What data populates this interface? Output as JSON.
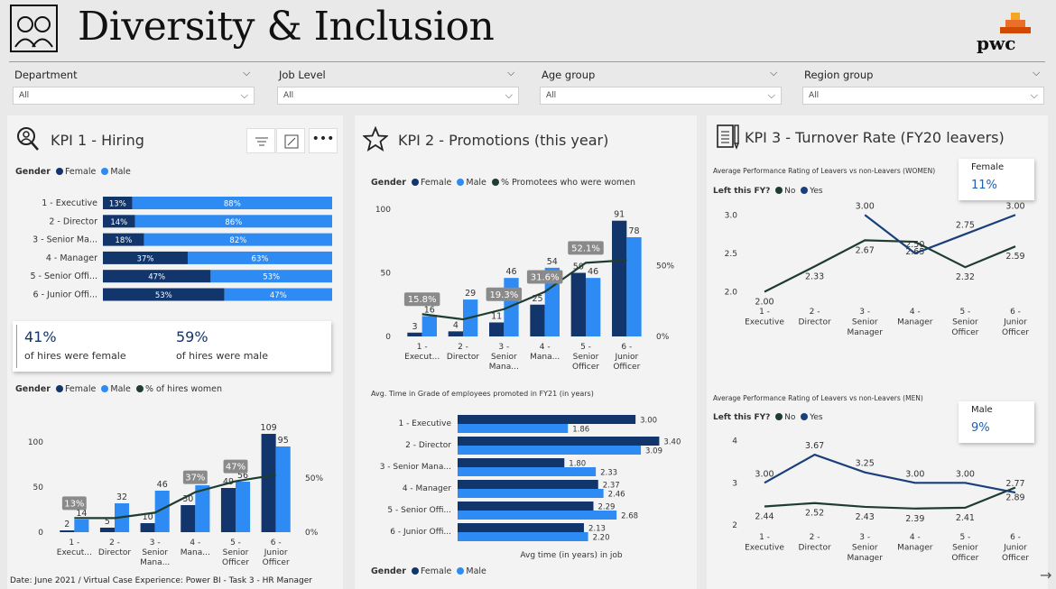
{
  "header": {
    "title": "Diversity & Inclusion",
    "logo_text": "pwc"
  },
  "filters": [
    {
      "label": "Department",
      "value": "All"
    },
    {
      "label": "Job Level",
      "value": "All"
    },
    {
      "label": "Age group",
      "value": "All"
    },
    {
      "label": "Region group",
      "value": "All"
    }
  ],
  "kpi1": {
    "title": "KPI 1 - Hiring",
    "gender_legend": {
      "title": "Gender",
      "female": "Female",
      "male": "Male"
    },
    "stacked": {
      "categories": [
        "1 - Executive",
        "2 - Director",
        "3 - Senior Ma...",
        "4 - Manager",
        "5 - Senior Offi...",
        "6 - Junior Offi..."
      ],
      "female_labels": [
        "13%",
        "14%",
        "18%",
        "37%",
        "47%",
        "53%"
      ],
      "male_labels": [
        "88%",
        "86%",
        "82%",
        "63%",
        "53%",
        "47%"
      ]
    },
    "card": {
      "female_value": "41%",
      "female_label": "of hires were female",
      "male_value": "59%",
      "male_label": "of hires were male"
    },
    "chart_legend": {
      "title": "Gender",
      "female": "Female",
      "male": "Male",
      "line": "% of hires women"
    }
  },
  "kpi2": {
    "title": "KPI 2 - Promotions (this year)",
    "chart_legend": {
      "title": "Gender",
      "female": "Female",
      "male": "Male",
      "line": "% Promotees who were women"
    },
    "bar_title": "Avg. Time in Grade of employees promoted in FY21 (in years)",
    "bar_xlabel": "Avg time (in years) in job",
    "bar_legend": {
      "title": "Gender",
      "female": "Female",
      "male": "Male"
    }
  },
  "kpi3": {
    "title": "KPI 3 - Turnover Rate (FY20 leavers)",
    "women_title": "Average Performance Rating of Leavers vs non-Leavers (WOMEN)",
    "men_title": "Average Performance Rating of Leavers vs non-Leavers (MEN)",
    "legend": {
      "title": "Left this FY?",
      "no": "No",
      "yes": "Yes"
    },
    "female_card": {
      "label": "Female",
      "value": "11%"
    },
    "male_card": {
      "label": "Male",
      "value": "9%"
    }
  },
  "footer": {
    "text": "Date: June 2021 / Virtual Case Experience: Power BI - Task 3 - HR Manager"
  },
  "colors": {
    "female": "#12366b",
    "male": "#2e8bf4",
    "line": "#1f3d2e",
    "label_bg": "#8a8a8a"
  },
  "chart_data": [
    {
      "id": "hiring_stacked",
      "type": "bar",
      "categories": [
        "1 - Executive",
        "2 - Director",
        "3 - Senior Ma...",
        "4 - Manager",
        "5 - Senior Offi...",
        "6 - Junior Offi..."
      ],
      "series": [
        {
          "name": "Female",
          "values": [
            13,
            14,
            18,
            37,
            47,
            53
          ]
        },
        {
          "name": "Male",
          "values": [
            88,
            86,
            82,
            63,
            53,
            47
          ]
        }
      ]
    },
    {
      "id": "hiring_combo",
      "type": "bar",
      "categories": [
        "1 - Execut...",
        "2 - Director",
        "3 - Senior Mana...",
        "4 - Mana...",
        "5 - Senior Officer",
        "6 - Junior Officer"
      ],
      "series": [
        {
          "name": "Female",
          "values": [
            2,
            5,
            10,
            30,
            49,
            109
          ]
        },
        {
          "name": "Male",
          "values": [
            14,
            32,
            46,
            52,
            56,
            95
          ]
        },
        {
          "name": "% of hires women",
          "values": [
            13,
            13,
            18,
            37,
            47,
            53
          ]
        }
      ],
      "line_labels": {
        "0": "13%",
        "3": "37%",
        "4": "47%"
      },
      "ylim": [
        0,
        120
      ],
      "y_ticks": [
        0,
        50,
        100
      ],
      "y2_ticks": [
        "0%",
        "50%"
      ]
    },
    {
      "id": "promotions_combo",
      "type": "bar",
      "categories": [
        "1 - Execut...",
        "2 - Director",
        "3 - Senior Mana...",
        "4 - Mana...",
        "5 - Senior Officer",
        "6 - Junior Officer"
      ],
      "series": [
        {
          "name": "Female",
          "values": [
            3,
            4,
            11,
            25,
            50,
            91
          ]
        },
        {
          "name": "Male",
          "values": [
            16,
            29,
            46,
            54,
            46,
            78
          ]
        },
        {
          "name": "% Promotees who were women",
          "values": [
            15.8,
            12.1,
            19.3,
            31.6,
            52.1,
            54
          ]
        }
      ],
      "line_labels": {
        "0": "15.8%",
        "2": "19.3%",
        "3": "31.6%",
        "4": "52.1%"
      },
      "ylim": [
        0,
        100
      ],
      "y_ticks": [
        0,
        50,
        100
      ],
      "y2_ticks": [
        "0%",
        "50%"
      ]
    },
    {
      "id": "time_in_grade",
      "type": "bar",
      "categories": [
        "1 - Executive",
        "2 - Director",
        "3 - Senior Mana...",
        "4 - Manager",
        "5 - Senior Offi...",
        "6 - Junior Offi..."
      ],
      "series": [
        {
          "name": "Female",
          "values": [
            3.0,
            3.4,
            1.8,
            2.37,
            2.29,
            2.13
          ]
        },
        {
          "name": "Male",
          "values": [
            1.86,
            3.09,
            2.33,
            2.46,
            2.68,
            2.2
          ]
        }
      ],
      "xlabel": "Avg time (in years) in job"
    },
    {
      "id": "turnover_women",
      "type": "line",
      "categories": [
        "1 - Executive",
        "2 - Director",
        "3 - Senior Manager",
        "4 - Manager",
        "5 - Senior Officer",
        "6 - Junior Officer"
      ],
      "series": [
        {
          "name": "No",
          "values": [
            2.0,
            2.33,
            2.67,
            2.65,
            2.32,
            2.59
          ]
        },
        {
          "name": "Yes",
          "values": [
            null,
            null,
            3.0,
            2.5,
            2.75,
            3.0
          ]
        }
      ],
      "ylim": [
        1.9,
        3.05
      ],
      "y_ticks": [
        2.0,
        2.5,
        3.0
      ]
    },
    {
      "id": "turnover_men",
      "type": "line",
      "categories": [
        "1 - Executive",
        "2 - Director",
        "3 - Senior Manager",
        "4 - Manager",
        "5 - Senior Officer",
        "6 - Junior Officer"
      ],
      "series": [
        {
          "name": "No",
          "values": [
            2.44,
            2.52,
            2.43,
            2.39,
            2.41,
            2.89
          ]
        },
        {
          "name": "Yes",
          "values": [
            3.0,
            3.67,
            3.25,
            3.0,
            3.0,
            2.77
          ]
        }
      ],
      "ylim": [
        2,
        4.1
      ],
      "y_ticks": [
        2,
        3,
        4
      ]
    }
  ]
}
